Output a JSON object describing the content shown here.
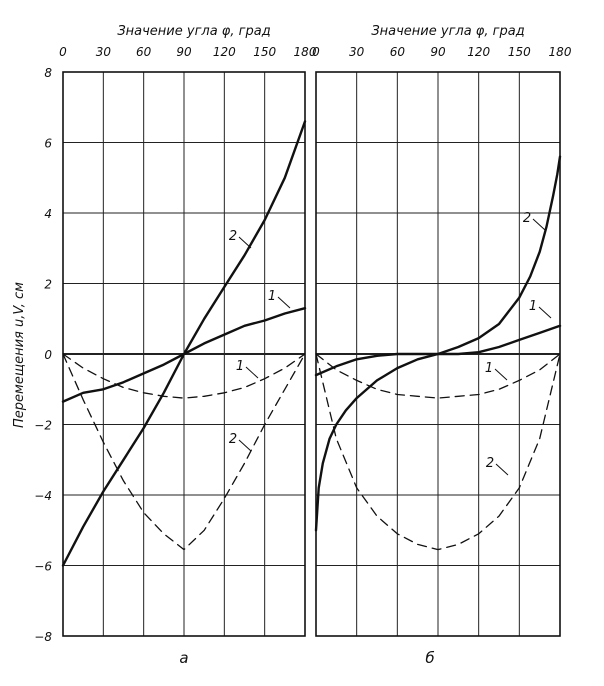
{
  "ylabel": "Перемещения u,V, см",
  "chart_data": [
    {
      "type": "line",
      "panel_label": "а",
      "xlabel": "Значение угла φ, град",
      "ylabel": "Перемещения u,V, см",
      "xlim": [
        0,
        180
      ],
      "ylim": [
        -8,
        8
      ],
      "xticks": [
        0,
        30,
        60,
        90,
        120,
        150,
        180
      ],
      "yticks": [
        -8,
        -6,
        -4,
        -2,
        0,
        2,
        4,
        6,
        8
      ],
      "grid": true,
      "series": [
        {
          "label": "1",
          "style": "solid",
          "x": [
            0,
            15,
            30,
            45,
            60,
            75,
            90,
            105,
            120,
            135,
            150,
            165,
            180
          ],
          "y": [
            -1.35,
            -1.1,
            -1.0,
            -0.8,
            -0.55,
            -0.3,
            0,
            0.3,
            0.55,
            0.8,
            0.95,
            1.15,
            1.3
          ]
        },
        {
          "label": "2",
          "style": "solid",
          "x": [
            0,
            15,
            30,
            45,
            60,
            75,
            90,
            105,
            120,
            135,
            150,
            165,
            180
          ],
          "y": [
            -6.0,
            -4.9,
            -3.9,
            -3.0,
            -2.1,
            -1.1,
            0,
            1.0,
            1.9,
            2.8,
            3.8,
            5.0,
            6.6
          ]
        },
        {
          "label": "1",
          "style": "dashed",
          "x": [
            0,
            15,
            30,
            45,
            60,
            75,
            90,
            105,
            120,
            135,
            150,
            165,
            180
          ],
          "y": [
            0,
            -0.4,
            -0.7,
            -0.95,
            -1.1,
            -1.2,
            -1.25,
            -1.2,
            -1.1,
            -0.95,
            -0.7,
            -0.4,
            0
          ]
        },
        {
          "label": "2",
          "style": "dashed",
          "x": [
            0,
            15,
            30,
            45,
            60,
            75,
            90,
            105,
            120,
            135,
            150,
            165,
            180
          ],
          "y": [
            0,
            -1.3,
            -2.5,
            -3.6,
            -4.5,
            -5.1,
            -5.55,
            -5.0,
            -4.1,
            -3.1,
            -2.0,
            -1.0,
            0
          ]
        }
      ]
    },
    {
      "type": "line",
      "panel_label": "б",
      "xlabel": "Значение угла φ, град",
      "ylabel": "Перемещения u,V, см",
      "xlim": [
        0,
        180
      ],
      "ylim": [
        -8,
        8
      ],
      "xticks": [
        0,
        30,
        60,
        90,
        120,
        150,
        180
      ],
      "yticks": [
        -8,
        -6,
        -4,
        -2,
        0,
        2,
        4,
        6,
        8
      ],
      "grid": true,
      "series": [
        {
          "label": "1",
          "style": "solid",
          "x": [
            0,
            15,
            30,
            45,
            60,
            75,
            90,
            105,
            120,
            135,
            150,
            165,
            180
          ],
          "y": [
            -0.6,
            -0.35,
            -0.15,
            -0.05,
            0,
            0,
            0,
            0,
            0.05,
            0.2,
            0.4,
            0.6,
            0.8
          ]
        },
        {
          "label": "2",
          "style": "solid",
          "x": [
            0,
            2,
            5,
            10,
            15,
            22,
            30,
            45,
            60,
            75,
            90,
            105,
            120,
            135,
            150,
            158,
            165,
            170,
            175,
            178,
            180
          ],
          "y": [
            -5.0,
            -3.8,
            -3.1,
            -2.4,
            -2.0,
            -1.6,
            -1.25,
            -0.75,
            -0.4,
            -0.15,
            0,
            0.2,
            0.45,
            0.85,
            1.6,
            2.2,
            2.9,
            3.6,
            4.5,
            5.1,
            5.6
          ]
        },
        {
          "label": "1",
          "style": "dashed",
          "x": [
            0,
            15,
            30,
            45,
            60,
            75,
            90,
            105,
            120,
            135,
            150,
            165,
            180
          ],
          "y": [
            0,
            -0.45,
            -0.75,
            -1.0,
            -1.15,
            -1.2,
            -1.25,
            -1.2,
            -1.15,
            -1.0,
            -0.75,
            -0.45,
            0
          ]
        },
        {
          "label": "2",
          "style": "dashed",
          "x": [
            0,
            15,
            30,
            45,
            60,
            75,
            90,
            105,
            120,
            135,
            150,
            165,
            180
          ],
          "y": [
            0,
            -2.4,
            -3.8,
            -4.6,
            -5.1,
            -5.4,
            -5.55,
            -5.4,
            -5.1,
            -4.6,
            -3.8,
            -2.4,
            0
          ]
        }
      ]
    }
  ]
}
